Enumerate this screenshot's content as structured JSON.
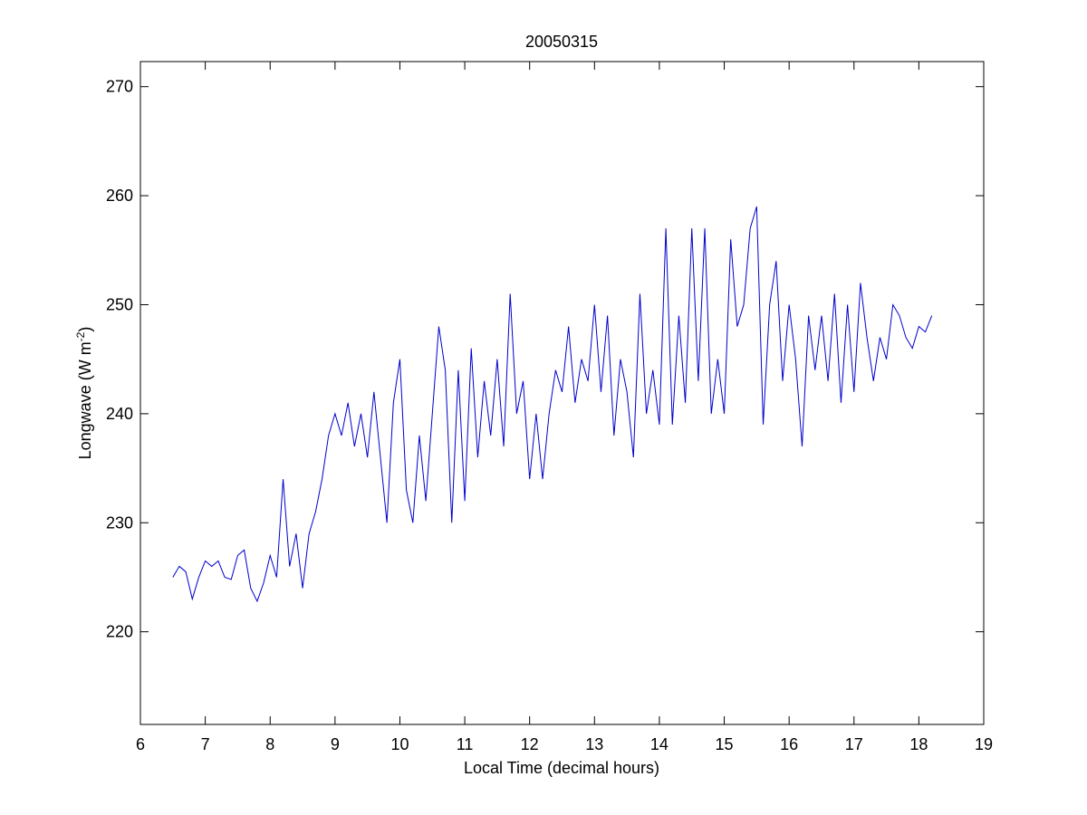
{
  "chart_data": {
    "type": "line",
    "title": "20050315",
    "xlabel": "Local Time (decimal hours)",
    "ylabel": {
      "text": "Longwave (W m",
      "superscript": "-2",
      "suffix": ")"
    },
    "xlim": [
      6,
      19
    ],
    "ylim": [
      211.5,
      272.3
    ],
    "xticks": [
      6,
      7,
      8,
      9,
      10,
      11,
      12,
      13,
      14,
      15,
      16,
      17,
      18,
      19
    ],
    "yticks": [
      220,
      230,
      240,
      250,
      260,
      270
    ],
    "grid": false,
    "x": [
      6.5,
      6.6,
      6.7,
      6.8,
      6.9,
      7.0,
      7.1,
      7.2,
      7.3,
      7.4,
      7.5,
      7.6,
      7.7,
      7.8,
      7.9,
      8.0,
      8.1,
      8.2,
      8.3,
      8.4,
      8.5,
      8.6,
      8.7,
      8.8,
      8.9,
      9.0,
      9.1,
      9.2,
      9.3,
      9.4,
      9.5,
      9.6,
      9.7,
      9.8,
      9.9,
      10.0,
      10.1,
      10.2,
      10.3,
      10.4,
      10.5,
      10.6,
      10.7,
      10.8,
      10.9,
      11.0,
      11.1,
      11.2,
      11.3,
      11.4,
      11.5,
      11.6,
      11.7,
      11.8,
      11.9,
      12.0,
      12.1,
      12.2,
      12.3,
      12.4,
      12.5,
      12.6,
      12.7,
      12.8,
      12.9,
      13.0,
      13.1,
      13.2,
      13.3,
      13.4,
      13.5,
      13.6,
      13.7,
      13.8,
      13.9,
      14.0,
      14.1,
      14.2,
      14.3,
      14.4,
      14.5,
      14.6,
      14.7,
      14.8,
      14.9,
      15.0,
      15.1,
      15.2,
      15.3,
      15.4,
      15.5,
      15.6,
      15.7,
      15.8,
      15.9,
      16.0,
      16.1,
      16.2,
      16.3,
      16.4,
      16.5,
      16.6,
      16.7,
      16.8,
      16.9,
      17.0,
      17.1,
      17.2,
      17.3,
      17.4,
      17.5,
      17.6,
      17.7,
      17.8,
      17.9,
      18.0,
      18.1,
      18.2
    ],
    "series": [
      {
        "name": "Longwave",
        "color": "#0000cc",
        "values": [
          225,
          226,
          225.5,
          223,
          225,
          226.5,
          226,
          226.5,
          225,
          224.8,
          227,
          227.5,
          224,
          222.8,
          224.5,
          227,
          225,
          234,
          226,
          229,
          224,
          229,
          231,
          234,
          238,
          240,
          238,
          241,
          237,
          240,
          236,
          242,
          236,
          230,
          241,
          245,
          233,
          230,
          238,
          232,
          240,
          248,
          244,
          230,
          244,
          232,
          246,
          236,
          243,
          238,
          245,
          237,
          251,
          240,
          243,
          234,
          240,
          234,
          240,
          244,
          242,
          248,
          241,
          245,
          243,
          250,
          242,
          249,
          238,
          245,
          242,
          236,
          251,
          240,
          244,
          239,
          257,
          239,
          249,
          241,
          257,
          243,
          257,
          240,
          245,
          240,
          256,
          248,
          250,
          257,
          259,
          239,
          250,
          254,
          243,
          250,
          245,
          237,
          249,
          244,
          249,
          243,
          251,
          241,
          250,
          242,
          252,
          247,
          243,
          247,
          245,
          250,
          249,
          247,
          246,
          248,
          247.5,
          249
        ]
      }
    ]
  }
}
